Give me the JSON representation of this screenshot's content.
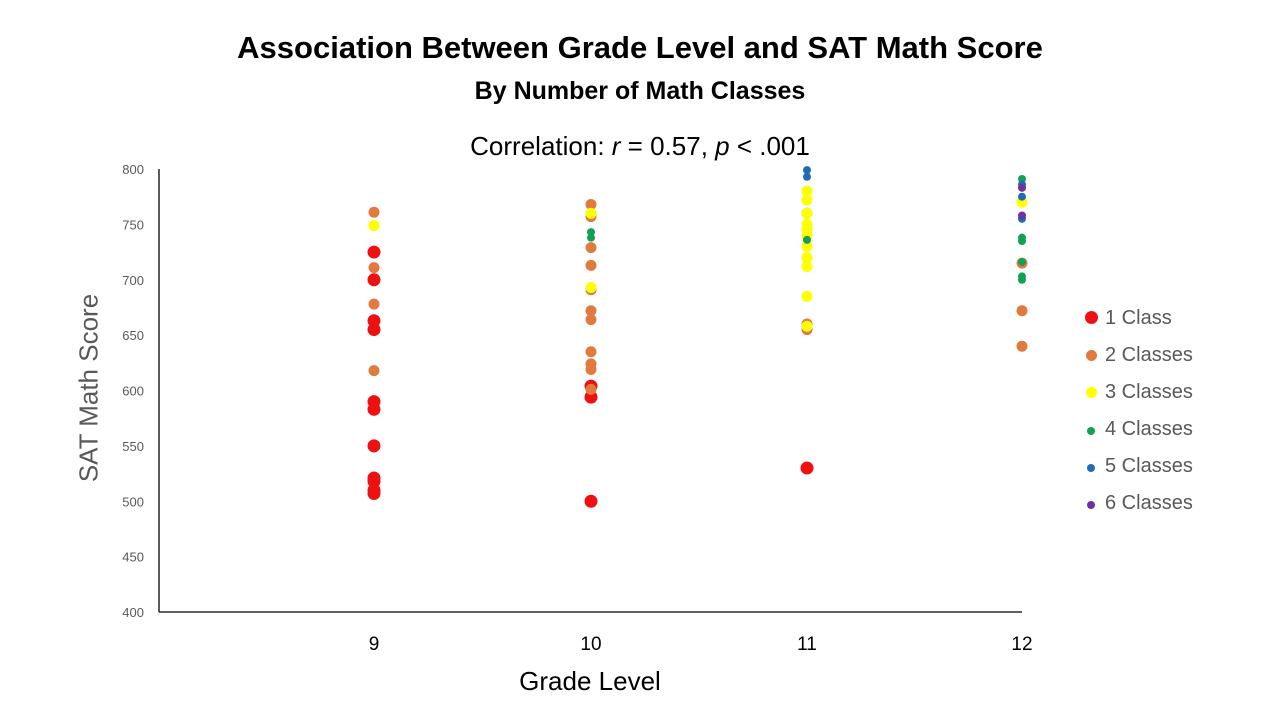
{
  "chart_data": {
    "type": "scatter",
    "title": "Association Between Grade Level and SAT Math Score",
    "subtitle": "By Number of Math Classes",
    "correlation": {
      "prefix": "Correlation: ",
      "r_symbol": "r",
      "r_text": " = 0.57, ",
      "p_symbol": "p",
      "p_text": " < .001"
    },
    "xlabel": "Grade Level",
    "ylabel": "SAT Math Score",
    "ylim": [
      400,
      800
    ],
    "yticks": [
      400,
      450,
      500,
      550,
      600,
      650,
      700,
      750,
      800
    ],
    "xticks": [
      9,
      10,
      11,
      12
    ],
    "legend_position": "right",
    "grid": false,
    "series": [
      {
        "name": "1 Class",
        "color": "#ee1111",
        "marker": "large",
        "points": [
          [
            9,
            725
          ],
          [
            9,
            700
          ],
          [
            9,
            663
          ],
          [
            9,
            655
          ],
          [
            9,
            590
          ],
          [
            9,
            583
          ],
          [
            9,
            550
          ],
          [
            9,
            521
          ],
          [
            9,
            518
          ],
          [
            9,
            510
          ],
          [
            9,
            507
          ],
          [
            10,
            604
          ],
          [
            10,
            594
          ],
          [
            10,
            500
          ],
          [
            11,
            530
          ]
        ]
      },
      {
        "name": "2 Classes",
        "color": "#e07a3e",
        "marker": "medium",
        "points": [
          [
            9,
            761
          ],
          [
            9,
            711
          ],
          [
            9,
            678
          ],
          [
            9,
            618
          ],
          [
            10,
            768
          ],
          [
            10,
            757
          ],
          [
            10,
            729
          ],
          [
            10,
            713
          ],
          [
            10,
            691
          ],
          [
            10,
            672
          ],
          [
            10,
            664
          ],
          [
            10,
            635
          ],
          [
            10,
            624
          ],
          [
            10,
            619
          ],
          [
            10,
            601
          ],
          [
            11,
            760
          ],
          [
            11,
            660
          ],
          [
            11,
            655
          ],
          [
            12,
            715
          ],
          [
            12,
            672
          ],
          [
            12,
            640
          ]
        ]
      },
      {
        "name": "3 Classes",
        "color": "#ffff00",
        "marker": "medium",
        "points": [
          [
            9,
            749
          ],
          [
            10,
            760
          ],
          [
            10,
            693
          ],
          [
            11,
            780
          ],
          [
            11,
            772
          ],
          [
            11,
            760
          ],
          [
            11,
            750
          ],
          [
            11,
            745
          ],
          [
            11,
            740
          ],
          [
            11,
            730
          ],
          [
            11,
            720
          ],
          [
            11,
            712
          ],
          [
            11,
            685
          ],
          [
            11,
            658
          ],
          [
            12,
            770
          ]
        ]
      },
      {
        "name": "4 Classes",
        "color": "#12a152",
        "marker": "small",
        "points": [
          [
            10,
            743
          ],
          [
            10,
            738
          ],
          [
            11,
            736
          ],
          [
            12,
            791
          ],
          [
            12,
            738
          ],
          [
            12,
            735
          ],
          [
            12,
            716
          ],
          [
            12,
            703
          ],
          [
            12,
            700
          ]
        ]
      },
      {
        "name": "5 Classes",
        "color": "#1f6cb4",
        "marker": "small",
        "points": [
          [
            11,
            799
          ],
          [
            11,
            793
          ],
          [
            12,
            786
          ],
          [
            12,
            775
          ],
          [
            12,
            755
          ]
        ]
      },
      {
        "name": "6 Classes",
        "color": "#7030a0",
        "marker": "small",
        "points": [
          [
            12,
            783
          ],
          [
            12,
            758
          ]
        ]
      }
    ]
  }
}
